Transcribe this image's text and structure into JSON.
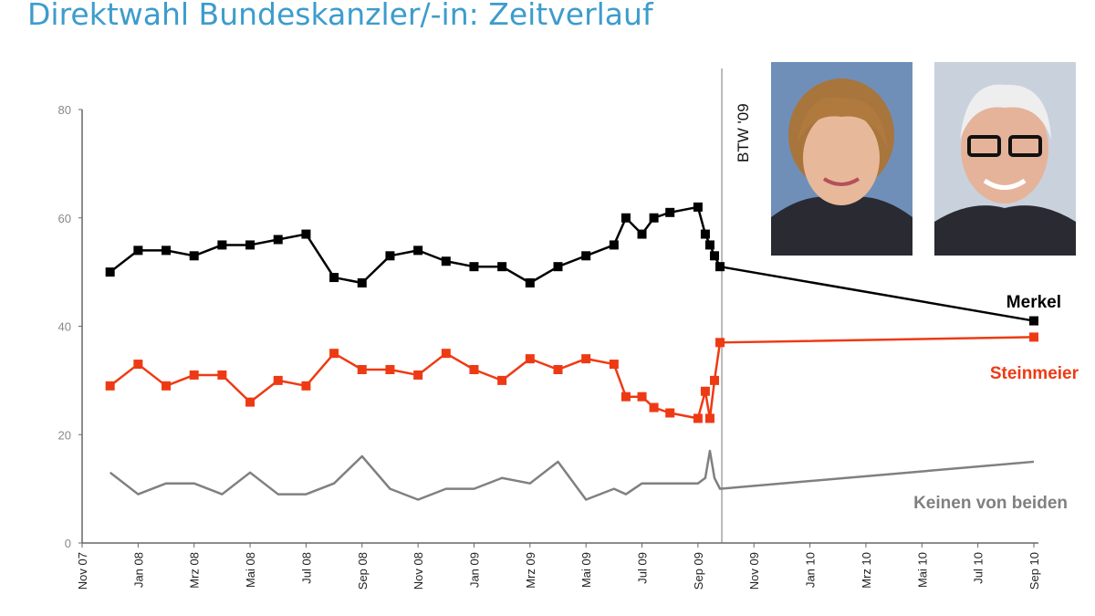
{
  "title": "Direktwahl Bundeskanzler/-in: Zeitverlauf",
  "marker_label": "BTW '09",
  "chart_data": {
    "type": "line",
    "title": "Direktwahl Bundeskanzler/-in: Zeitverlauf",
    "xlabel": "",
    "ylabel": "",
    "ylim": [
      0,
      80
    ],
    "xlim": [
      "2007-11-01",
      "2010-09-01"
    ],
    "y_ticks": [
      "0",
      "20",
      "40",
      "60",
      "80"
    ],
    "x_ticks": [
      "Nov 07",
      "Jan 08",
      "Mrz 08",
      "Mai 08",
      "Jul 08",
      "Sep 08",
      "Nov 08",
      "Jan 09",
      "Mrz 09",
      "Mai 09",
      "Jul 09",
      "Sep 09",
      "Nov 09",
      "Jan 10",
      "Mrz 10",
      "Mai 10",
      "Jul 10",
      "Sep 10"
    ],
    "grid": false,
    "vertical_marker": {
      "x": "2009-09-27",
      "label": "BTW '09"
    },
    "series": [
      {
        "name": "Merkel",
        "color": "#000000",
        "markers": true,
        "x": [
          "2007-12-01",
          "2008-01-01",
          "2008-02-01",
          "2008-03-01",
          "2008-04-01",
          "2008-05-01",
          "2008-06-01",
          "2008-07-01",
          "2008-08-01",
          "2008-09-01",
          "2008-10-01",
          "2008-11-01",
          "2008-12-01",
          "2009-01-01",
          "2009-02-01",
          "2009-03-01",
          "2009-04-01",
          "2009-05-01",
          "2009-06-01",
          "2009-06-14",
          "2009-07-01",
          "2009-07-14",
          "2009-08-01",
          "2009-09-01",
          "2009-09-09",
          "2009-09-14",
          "2009-09-19",
          "2009-09-25",
          "2010-09-01"
        ],
        "values": [
          50,
          54,
          54,
          53,
          55,
          55,
          56,
          57,
          49,
          48,
          53,
          54,
          52,
          51,
          51,
          48,
          51,
          53,
          55,
          60,
          57,
          60,
          61,
          62,
          57,
          55,
          53,
          51,
          41
        ]
      },
      {
        "name": "Steinmeier",
        "color": "#ee3a14",
        "markers": true,
        "x": [
          "2007-12-01",
          "2008-01-01",
          "2008-02-01",
          "2008-03-01",
          "2008-04-01",
          "2008-05-01",
          "2008-06-01",
          "2008-07-01",
          "2008-08-01",
          "2008-09-01",
          "2008-10-01",
          "2008-11-01",
          "2008-12-01",
          "2009-01-01",
          "2009-02-01",
          "2009-03-01",
          "2009-04-01",
          "2009-05-01",
          "2009-06-01",
          "2009-06-14",
          "2009-07-01",
          "2009-07-14",
          "2009-08-01",
          "2009-09-01",
          "2009-09-09",
          "2009-09-14",
          "2009-09-19",
          "2009-09-25",
          "2010-09-01"
        ],
        "values": [
          29,
          33,
          29,
          31,
          31,
          26,
          30,
          29,
          35,
          32,
          32,
          31,
          35,
          32,
          30,
          34,
          32,
          34,
          33,
          27,
          27,
          25,
          24,
          23,
          28,
          23,
          30,
          37,
          38
        ]
      },
      {
        "name": "Keinen von beiden",
        "color": "#808080",
        "markers": false,
        "x": [
          "2007-12-01",
          "2008-01-01",
          "2008-02-01",
          "2008-03-01",
          "2008-04-01",
          "2008-05-01",
          "2008-06-01",
          "2008-07-01",
          "2008-08-01",
          "2008-09-01",
          "2008-10-01",
          "2008-11-01",
          "2008-12-01",
          "2009-01-01",
          "2009-02-01",
          "2009-03-01",
          "2009-04-01",
          "2009-05-01",
          "2009-06-01",
          "2009-06-14",
          "2009-07-01",
          "2009-09-01",
          "2009-09-09",
          "2009-09-14",
          "2009-09-19",
          "2009-09-25",
          "2010-09-01"
        ],
        "values": [
          13,
          9,
          11,
          11,
          9,
          13,
          9,
          9,
          11,
          16,
          10,
          8,
          10,
          10,
          12,
          11,
          15,
          8,
          10,
          9,
          11,
          11,
          12,
          17,
          12,
          10,
          15
        ]
      }
    ]
  }
}
